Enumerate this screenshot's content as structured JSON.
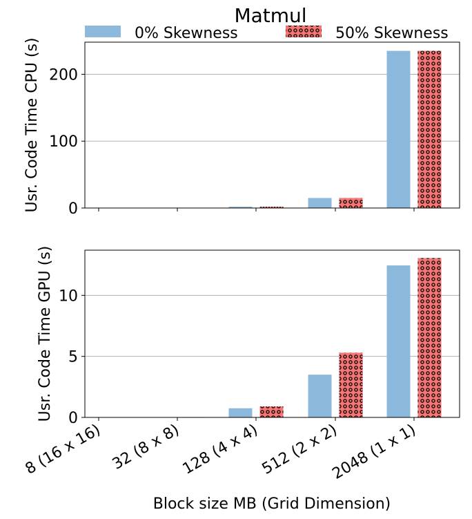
{
  "chart_data": {
    "type": "bar",
    "title": "Matmul",
    "xlabel": "Block size MB (Grid Dimension)",
    "categories": [
      "8 (16 x 16)",
      "32 (8 x 8)",
      "128 (4 x 4)",
      "512 (2 x 2)",
      "2048 (1 x 1)"
    ],
    "legend": {
      "placement": "top-center",
      "entries": [
        "0% Skewness",
        "50% Skewness"
      ]
    },
    "grid": "y-major",
    "colors": {
      "skew0": "#8cb9db",
      "skew50": "#f77674",
      "hatch": "#000000"
    },
    "panels": [
      {
        "ylabel": "Usr. Code Time CPU (s)",
        "ylim": [
          0,
          248
        ],
        "yticks": [
          0,
          100,
          200
        ],
        "series": [
          {
            "name": "0% Skewness",
            "values": [
              0.05,
              0.3,
              2.0,
              15.0,
              235.0
            ]
          },
          {
            "name": "50% Skewness",
            "values": [
              0.05,
              0.3,
              2.0,
              15.0,
              235.0
            ]
          }
        ]
      },
      {
        "ylabel": "Usr. Code Time GPU (s)",
        "ylim": [
          0,
          13.7
        ],
        "yticks": [
          0,
          5,
          10
        ],
        "series": [
          {
            "name": "0% Skewness",
            "values": [
              0.0,
              0.03,
              0.75,
              3.5,
              12.45
            ]
          },
          {
            "name": "50% Skewness",
            "values": [
              0.0,
              0.03,
              0.9,
              5.3,
              13.05
            ]
          }
        ]
      }
    ]
  }
}
